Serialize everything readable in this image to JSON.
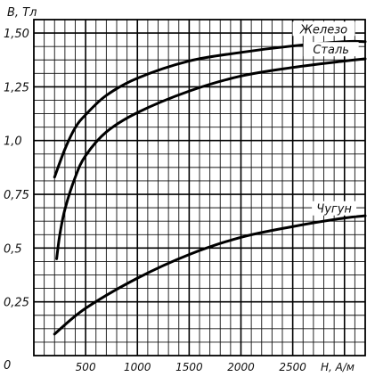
{
  "chart_data": {
    "type": "line",
    "title": "",
    "ylabel": "B, Тл",
    "xlabel": "H, A/м",
    "origin_label": "0",
    "xlim": [
      0,
      3200
    ],
    "ylim": [
      0,
      1.5625
    ],
    "x_ticks": [
      {
        "value": 500,
        "label": "500"
      },
      {
        "value": 1000,
        "label": "1000"
      },
      {
        "value": 1500,
        "label": "1500"
      },
      {
        "value": 2000,
        "label": "2000"
      },
      {
        "value": 2500,
        "label": "2500"
      }
    ],
    "y_ticks": [
      {
        "value": 0.25,
        "label": "0,25"
      },
      {
        "value": 0.5,
        "label": "0,5"
      },
      {
        "value": 0.75,
        "label": "0,75"
      },
      {
        "value": 1.0,
        "label": "1,0"
      },
      {
        "value": 1.25,
        "label": "1,25"
      },
      {
        "value": 1.5,
        "label": "1,50"
      }
    ],
    "grid": true,
    "series": [
      {
        "name": "Железо",
        "x": [
          200,
          300,
          400,
          500,
          700,
          1000,
          1500,
          2000,
          2500,
          3000,
          3200
        ],
        "y": [
          0.83,
          0.96,
          1.06,
          1.12,
          1.21,
          1.29,
          1.37,
          1.41,
          1.44,
          1.46,
          1.46
        ]
      },
      {
        "name": "Сталь",
        "x": [
          220,
          250,
          300,
          400,
          500,
          700,
          1000,
          1500,
          2000,
          2500,
          3000,
          3200
        ],
        "y": [
          0.45,
          0.56,
          0.68,
          0.83,
          0.93,
          1.04,
          1.13,
          1.23,
          1.3,
          1.34,
          1.37,
          1.38
        ]
      },
      {
        "name": "Чугун",
        "x": [
          200,
          500,
          1000,
          1500,
          2000,
          2500,
          3000,
          3200
        ],
        "y": [
          0.1,
          0.22,
          0.36,
          0.47,
          0.55,
          0.6,
          0.64,
          0.65
        ]
      }
    ]
  }
}
